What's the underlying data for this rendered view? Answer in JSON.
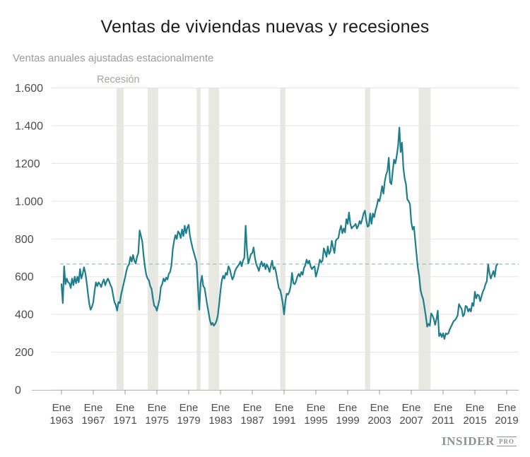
{
  "header": {
    "title": "Ventas de viviendas nuevas y recesiones",
    "subtitle": "Ventas anuales ajustadas estacionalmente"
  },
  "footer": {
    "brand": "INSIDER",
    "brand_suffix": "PRO"
  },
  "chart_data": {
    "type": "line",
    "title": "Ventas de viviendas nuevas y recesiones",
    "subtitle": "Ventas anuales ajustadas estacionalmente",
    "recession_label": "Recesión",
    "x_start_year": 1963,
    "points_per_year": 6,
    "xlabel": "",
    "ylabel": "",
    "ylim": [
      0,
      1600
    ],
    "grid": true,
    "legend_position": "none",
    "ytick_values": [
      0,
      200,
      400,
      600,
      800,
      1000,
      1200,
      1400,
      1600
    ],
    "ytick_labels": [
      "0",
      "200",
      "400",
      "600",
      "800",
      "1.000",
      "1200",
      "1.400",
      "1.600"
    ],
    "xtick_month_label": "Ene",
    "xtick_years": [
      1963,
      1967,
      1971,
      1975,
      1979,
      1983,
      1987,
      1991,
      1995,
      1999,
      2003,
      2007,
      2011,
      2015,
      2019
    ],
    "reference_line_value": 667,
    "recessions": [
      [
        1969.92,
        1970.83
      ],
      [
        1973.83,
        1975.17
      ],
      [
        1980.0,
        1980.5
      ],
      [
        1981.5,
        1982.83
      ],
      [
        1990.5,
        1991.17
      ],
      [
        2001.17,
        2001.83
      ],
      [
        2007.92,
        2009.42
      ]
    ],
    "colors": {
      "line": "#1e7e8c",
      "reference_line": "#8ccdd4",
      "recession_band": "#e8e8e2",
      "gridline": "#e5e5e5",
      "axis_line": "#b5b5b5",
      "tick": "#9b9b9b",
      "axis_text": "#4c4c4c",
      "recession_text": "#a6a59b"
    },
    "values": [
      560,
      460,
      655,
      560,
      590,
      570,
      565,
      540,
      590,
      555,
      600,
      565,
      600,
      570,
      640,
      590,
      615,
      650,
      620,
      570,
      510,
      455,
      425,
      440,
      465,
      525,
      570,
      550,
      570,
      560,
      545,
      570,
      585,
      555,
      575,
      590,
      575,
      555,
      540,
      500,
      465,
      450,
      420,
      465,
      460,
      505,
      535,
      565,
      595,
      630,
      655,
      665,
      705,
      680,
      715,
      685,
      670,
      705,
      725,
      845,
      815,
      785,
      710,
      650,
      610,
      590,
      580,
      550,
      535,
      485,
      445,
      440,
      420,
      450,
      480,
      545,
      560,
      590,
      575,
      595,
      585,
      615,
      625,
      660,
      745,
      790,
      820,
      800,
      840,
      830,
      805,
      850,
      815,
      870,
      830,
      860,
      875,
      815,
      780,
      750,
      725,
      700,
      675,
      545,
      425,
      565,
      605,
      550,
      540,
      495,
      450,
      410,
      370,
      345,
      355,
      340,
      350,
      365,
      395,
      455,
      525,
      580,
      605,
      590,
      620,
      610,
      655,
      640,
      610,
      585,
      600,
      630,
      645,
      655,
      665,
      680,
      655,
      685,
      700,
      870,
      740,
      670,
      695,
      720,
      725,
      755,
      700,
      665,
      650,
      630,
      660,
      680,
      655,
      670,
      640,
      665,
      650,
      625,
      655,
      685,
      640,
      650,
      620,
      580,
      540,
      530,
      500,
      460,
      400,
      470,
      510,
      505,
      520,
      550,
      620,
      565,
      560,
      575,
      600,
      615,
      600,
      625,
      610,
      645,
      660,
      690,
      670,
      685,
      655,
      640,
      650,
      655,
      600,
      625,
      655,
      690,
      675,
      685,
      750,
      730,
      705,
      760,
      720,
      735,
      790,
      755,
      725,
      790,
      800,
      805,
      845,
      870,
      830,
      855,
      835,
      905,
      880,
      940,
      880,
      855,
      865,
      870,
      880,
      855,
      870,
      895,
      880,
      905,
      935,
      950,
      900,
      865,
      870,
      935,
      880,
      935,
      915,
      950,
      975,
      1010,
      1000,
      1035,
      1080,
      1040,
      1105,
      1140,
      1160,
      1230,
      1100,
      1090,
      1160,
      1220,
      1200,
      1240,
      1290,
      1390,
      1260,
      1310,
      1180,
      1120,
      1090,
      1010,
      1000,
      985,
      890,
      850,
      865,
      790,
      715,
      645,
      600,
      530,
      500,
      480,
      435,
      390,
      335,
      350,
      340,
      405,
      395,
      375,
      345,
      375,
      420,
      285,
      300,
      280,
      300,
      270,
      300,
      295,
      300,
      320,
      335,
      350,
      365,
      370,
      380,
      395,
      455,
      440,
      430,
      390,
      400,
      445,
      440,
      415,
      430,
      415,
      460,
      445,
      520,
      485,
      505,
      500,
      470,
      495,
      520,
      535,
      560,
      575,
      665,
      620,
      590,
      610,
      630,
      600,
      655,
      667
    ]
  }
}
